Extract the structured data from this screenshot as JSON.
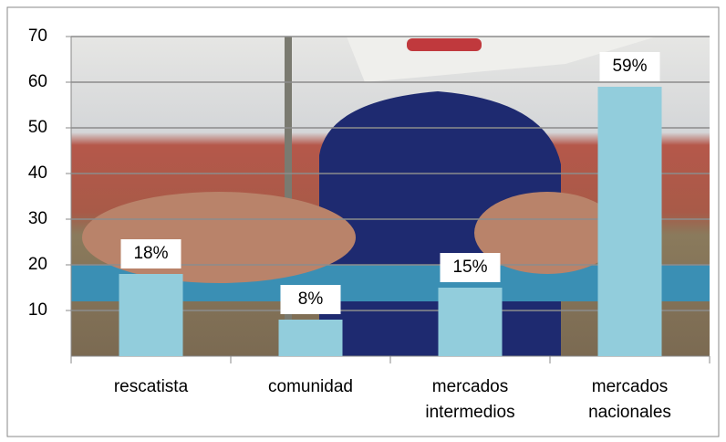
{
  "chart_data": {
    "type": "bar",
    "categories": [
      "rescatista",
      "comunidad",
      "mercados intermedios",
      "mercados nacionales"
    ],
    "values": [
      18,
      8,
      15,
      59
    ],
    "value_labels": [
      "18%",
      "8%",
      "15%",
      "59%"
    ],
    "color": "#92cddc",
    "ylim": [
      0,
      70
    ],
    "yticks": [
      10,
      20,
      30,
      40,
      50,
      60,
      70
    ],
    "grid": true
  }
}
